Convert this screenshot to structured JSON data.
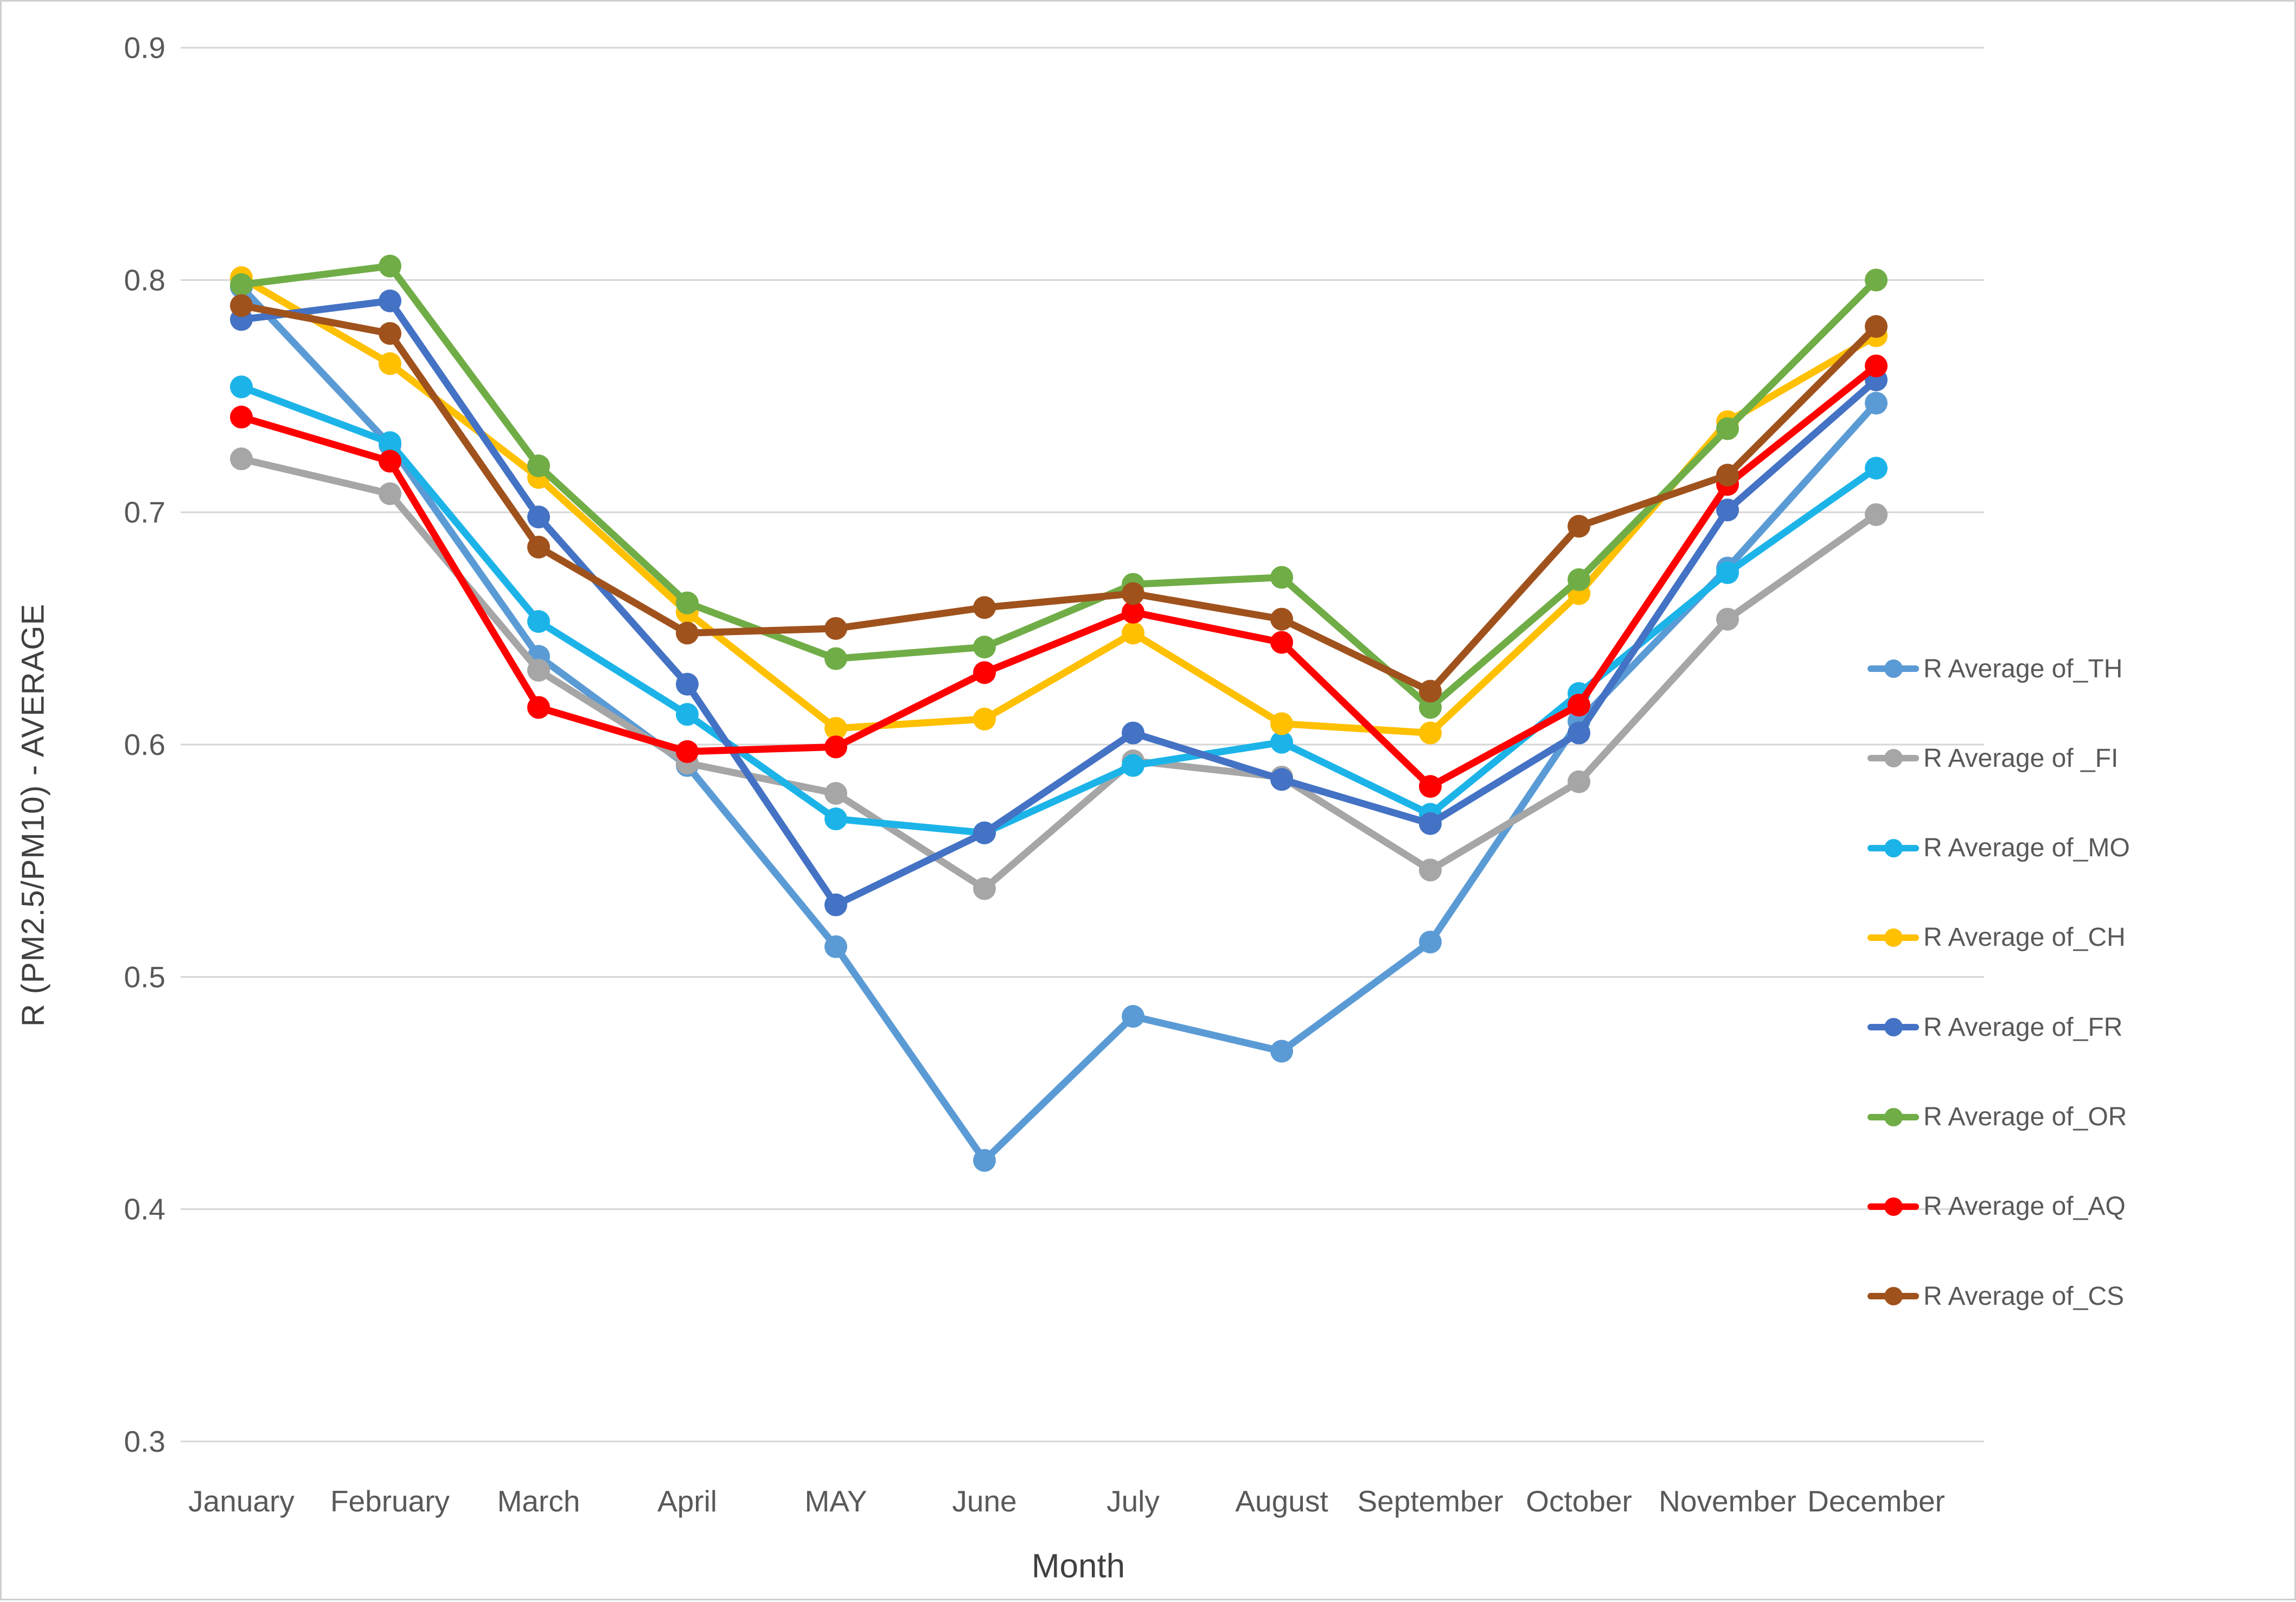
{
  "chart_data": {
    "type": "line",
    "title": "",
    "xlabel": "Month",
    "ylabel": "R (PM2.5/PM10) - AVERAGE",
    "categories": [
      "January",
      "February",
      "March",
      "April",
      "MAY",
      "June",
      "July",
      "August",
      "September",
      "October",
      "November",
      "December"
    ],
    "y_ticks": [
      "0.9",
      "0.8",
      "0.7",
      "0.6",
      "0.5",
      "0.4",
      "0.3"
    ],
    "y_tick_values": [
      0.9,
      0.8,
      0.7,
      0.6,
      0.5,
      0.4,
      0.3
    ],
    "ylim": [
      0.3,
      0.9
    ],
    "grid": true,
    "legend_position": "right",
    "colors": {
      "grid": "#d6d6d6",
      "tick_text": "#595959",
      "axis_title_text": "#404040",
      "legend_text": "#595959",
      "border": "#cfcfcf"
    },
    "series": [
      {
        "name": "R Average of_TH",
        "color": "#5B9BD5",
        "values": [
          0.797,
          0.729,
          0.638,
          0.591,
          0.513,
          0.421,
          0.483,
          0.468,
          0.515,
          0.61,
          0.676,
          0.747
        ]
      },
      {
        "name": "R Average of _FI",
        "color": "#A6A6A6",
        "values": [
          0.723,
          0.708,
          0.632,
          0.592,
          0.579,
          0.538,
          0.593,
          0.586,
          0.546,
          0.584,
          0.654,
          0.699
        ]
      },
      {
        "name": "R Average of_MO",
        "color": "#1CB4E8",
        "values": [
          0.754,
          0.73,
          0.653,
          0.613,
          0.568,
          0.562,
          0.591,
          0.601,
          0.57,
          0.622,
          0.674,
          0.719
        ]
      },
      {
        "name": "R Average of_CH",
        "color": "#FFC000",
        "values": [
          0.801,
          0.764,
          0.715,
          0.657,
          0.607,
          0.611,
          0.648,
          0.609,
          0.605,
          0.665,
          0.739,
          0.776
        ]
      },
      {
        "name": "R Average of_FR",
        "color": "#4472C4",
        "values": [
          0.783,
          0.791,
          0.698,
          0.626,
          0.531,
          0.562,
          0.605,
          0.585,
          0.566,
          0.605,
          0.701,
          0.757
        ]
      },
      {
        "name": "R Average of_OR",
        "color": "#70AD47",
        "values": [
          0.798,
          0.806,
          0.72,
          0.661,
          0.637,
          0.642,
          0.669,
          0.672,
          0.616,
          0.671,
          0.736,
          0.8
        ]
      },
      {
        "name": "R Average of_AQ",
        "color": "#FF0000",
        "values": [
          0.741,
          0.722,
          0.616,
          0.597,
          0.599,
          0.631,
          0.657,
          0.644,
          0.582,
          0.617,
          0.712,
          0.763
        ]
      },
      {
        "name": "R Average of_CS",
        "color": "#A0521D",
        "values": [
          0.789,
          0.777,
          0.685,
          0.648,
          0.65,
          0.659,
          0.665,
          0.654,
          0.623,
          0.694,
          0.716,
          0.78
        ]
      }
    ]
  }
}
